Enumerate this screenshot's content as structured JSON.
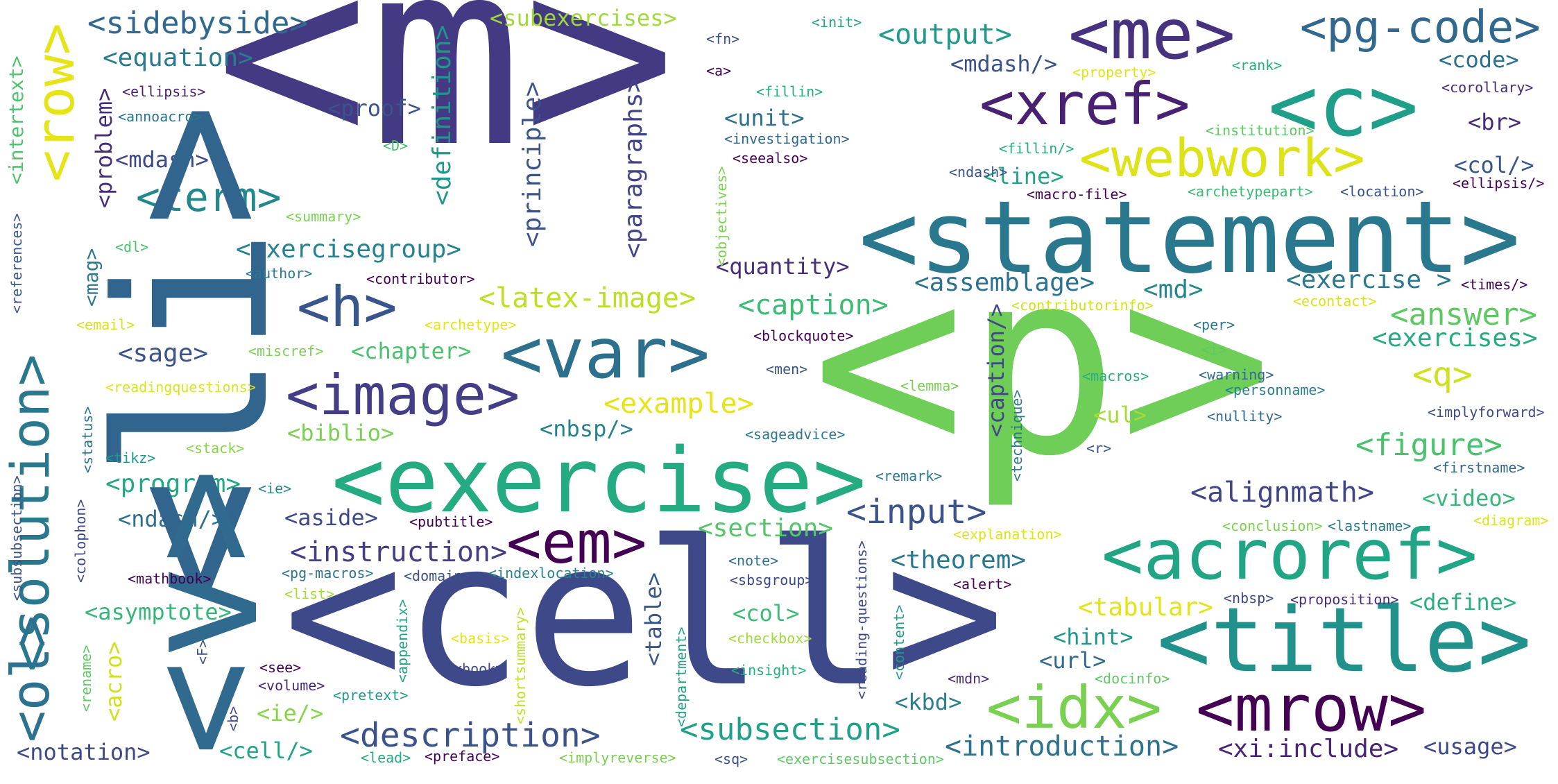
{
  "words": [
    {
      "text": "<m>",
      "color": "#443983"
    },
    {
      "text": "<p>",
      "color": "#6ece58"
    },
    {
      "text": "<cell>",
      "color": "#3e4989"
    },
    {
      "text": "<statement>",
      "color": "#2a788e"
    },
    {
      "text": "<exercise>",
      "color": "#25ab82"
    },
    {
      "text": "<title>",
      "color": "#21918c"
    },
    {
      "text": "<acroref>",
      "color": "#21a585"
    },
    {
      "text": "<me>",
      "color": "#46327e"
    },
    {
      "text": "<c>",
      "color": "#1f9e89"
    },
    {
      "text": "<pg-code>",
      "color": "#31688e"
    },
    {
      "text": "<xref>",
      "color": "#482173"
    },
    {
      "text": "<webwork>",
      "color": "#dde318"
    },
    {
      "text": "<var>",
      "color": "#2d708e"
    },
    {
      "text": "<image>",
      "color": "#433e85"
    },
    {
      "text": "<mrow>",
      "color": "#440154"
    },
    {
      "text": "<idx>",
      "color": "#7ad151"
    },
    {
      "text": "<em>",
      "color": "#440154"
    },
    {
      "text": "<h>",
      "color": "#39568c"
    },
    {
      "text": "<sidebyside>",
      "color": "#31688e"
    },
    {
      "text": "<term>",
      "color": "#23888e"
    },
    {
      "text": "<description>",
      "color": "#3b528b"
    },
    {
      "text": "<subsection>",
      "color": "#1fa187"
    },
    {
      "text": "<introduction>",
      "color": "#2c728e"
    },
    {
      "text": "<alignmath>",
      "color": "#414487"
    },
    {
      "text": "<input>",
      "color": "#3b528b"
    },
    {
      "text": "<instruction>",
      "color": "#433e85"
    },
    {
      "text": "<figure>",
      "color": "#4ac16d"
    },
    {
      "text": "<answer>",
      "color": "#5ec962"
    },
    {
      "text": "<latex-image>",
      "color": "#bddf26"
    },
    {
      "text": "<example>",
      "color": "#e5e419"
    },
    {
      "text": "<caption>",
      "color": "#3bbb75"
    },
    {
      "text": "<exercisegroup>",
      "color": "#26828e"
    },
    {
      "text": "<equation>",
      "color": "#287c8e"
    },
    {
      "text": "<output>",
      "color": "#1f9a8a"
    },
    {
      "text": "<subexercises>",
      "color": "#9fda3a"
    },
    {
      "text": "<program>",
      "color": "#22a884"
    },
    {
      "text": "<xi:include>",
      "color": "#482475"
    },
    {
      "text": "<tabular>",
      "color": "#e2e418"
    },
    {
      "text": "<section>",
      "color": "#54c568"
    },
    {
      "text": "<theorem>",
      "color": "#2a788e"
    },
    {
      "text": "<exercises>",
      "color": "#25ab82"
    },
    {
      "text": "<exercise >",
      "color": "#2a788e"
    },
    {
      "text": "<assemblage>",
      "color": "#2c728e"
    },
    {
      "text": "<md>",
      "color": "#23888e"
    },
    {
      "text": "<sage>",
      "color": "#3b528b"
    },
    {
      "text": "<chapter>",
      "color": "#4ac16d"
    },
    {
      "text": "<biblio>",
      "color": "#7ad151"
    },
    {
      "text": "<nbsp/>",
      "color": "#26828e"
    },
    {
      "text": "<aside>",
      "color": "#3e4989"
    },
    {
      "text": "<ndash/>",
      "color": "#2d708e"
    },
    {
      "text": "<asymptote>",
      "color": "#35b779"
    },
    {
      "text": "<notation>",
      "color": "#3e4989"
    },
    {
      "text": "<cell/>",
      "color": "#20a386"
    },
    {
      "text": "<kbd>",
      "color": "#277f8e"
    },
    {
      "text": "<hint>",
      "color": "#1f988b"
    },
    {
      "text": "<url>",
      "color": "#31688e"
    },
    {
      "text": "<define>",
      "color": "#29af7f"
    },
    {
      "text": "<video>",
      "color": "#35b779"
    },
    {
      "text": "<usage>",
      "color": "#3e4989"
    },
    {
      "text": "<code>",
      "color": "#2d708e"
    },
    {
      "text": "<q>",
      "color": "#cde11d"
    },
    {
      "text": "<ul>",
      "color": "#a5db36"
    },
    {
      "text": "<col>",
      "color": "#3bbb75"
    },
    {
      "text": "<col/>",
      "color": "#39568c"
    },
    {
      "text": "<br>",
      "color": "#482878"
    },
    {
      "text": "<line>",
      "color": "#20a386"
    },
    {
      "text": "<unit>",
      "color": "#2d708e"
    },
    {
      "text": "<proof>",
      "color": "#3b528b"
    },
    {
      "text": "<mdash>",
      "color": "#3e4989"
    },
    {
      "text": "<mdash/>",
      "color": "#3b528b"
    },
    {
      "text": "<quantity>",
      "color": "#472d7b"
    },
    {
      "text": "<ie/>",
      "color": "#86d549"
    },
    {
      "text": "<solution>",
      "color": "#2a788e"
    },
    {
      "text": "<ol>",
      "color": "#2c728e"
    },
    {
      "text": "<row>",
      "color": "#e5e419"
    },
    {
      "text": "<li>",
      "color": "#32658e"
    },
    {
      "text": "<v>",
      "color": "#306a8e"
    },
    {
      "text": "<definition>",
      "color": "#1f988b"
    },
    {
      "text": "<principle>",
      "color": "#3b528b"
    },
    {
      "text": "<paragraphs>",
      "color": "#414487"
    },
    {
      "text": "<problem>",
      "color": "#472c7a"
    },
    {
      "text": "<intertext>",
      "color": "#4ec36b"
    },
    {
      "text": "<mag>",
      "color": "#2a788e"
    },
    {
      "text": "<caption/>",
      "color": "#404688"
    },
    {
      "text": "<table>",
      "color": "#39558c"
    },
    {
      "text": "<acro>",
      "color": "#d0e11c"
    },
    {
      "text": "<ellipsis>",
      "color": "#482173"
    },
    {
      "text": "<annoacro>",
      "color": "#2a788e"
    },
    {
      "text": "<D>",
      "color": "#4ac16d"
    },
    {
      "text": "<summary>",
      "color": "#7ad151"
    },
    {
      "text": "<dl>",
      "color": "#4ac16d"
    },
    {
      "text": "<author>",
      "color": "#2a788e"
    },
    {
      "text": "<contributor>",
      "color": "#440154"
    },
    {
      "text": "<email>",
      "color": "#d8e219"
    },
    {
      "text": "<archetype>",
      "color": "#e5e419"
    },
    {
      "text": "<miscref>",
      "color": "#7ad151"
    },
    {
      "text": "<readingquestions>",
      "color": "#dde318"
    },
    {
      "text": "<stack>",
      "color": "#86d549"
    },
    {
      "text": "<tikz>",
      "color": "#1f988b"
    },
    {
      "text": "<ie>",
      "color": "#23888e"
    },
    {
      "text": "<status>",
      "color": "#2c728e"
    },
    {
      "text": "<colophon>",
      "color": "#3e4989"
    },
    {
      "text": "<subsubsection>",
      "color": "#3b528b"
    },
    {
      "text": "<references>",
      "color": "#39568c"
    },
    {
      "text": "<mathbook>",
      "color": "#440154"
    },
    {
      "text": "<pg-macros>",
      "color": "#2c728e"
    },
    {
      "text": "<list>",
      "color": "#a5db36"
    },
    {
      "text": "<domain>",
      "color": "#3b528b"
    },
    {
      "text": "<indexlocation>",
      "color": "#26828e"
    },
    {
      "text": "<pubtitle>",
      "color": "#440154"
    },
    {
      "text": "<see>",
      "color": "#440154"
    },
    {
      "text": "<volume>",
      "color": "#482878"
    },
    {
      "text": "<pretext>",
      "color": "#1f9a8a"
    },
    {
      "text": "<b>",
      "color": "#3e4989"
    },
    {
      "text": "<rename>",
      "color": "#5ec962"
    },
    {
      "text": "<F>",
      "color": "#3b528b"
    },
    {
      "text": "<appendix>",
      "color": "#20a386"
    },
    {
      "text": "<basis>",
      "color": "#e5e419"
    },
    {
      "text": "<book>",
      "color": "#3e4989"
    },
    {
      "text": "<shortsummary>",
      "color": "#c2df23"
    },
    {
      "text": "<lead>",
      "color": "#25ab82"
    },
    {
      "text": "<preface>",
      "color": "#440154"
    },
    {
      "text": "<implyreverse>",
      "color": "#7ad151"
    },
    {
      "text": "<sq>",
      "color": "#3b528b"
    },
    {
      "text": "<exercisesubsection>",
      "color": "#5ec962"
    },
    {
      "text": "<department>",
      "color": "#20a386"
    },
    {
      "text": "<insight>",
      "color": "#29af7f"
    },
    {
      "text": "<checkbox>",
      "color": "#a0da39"
    },
    {
      "text": "<sbsgroup>",
      "color": "#3e4989"
    },
    {
      "text": "<note>",
      "color": "#2c728e"
    },
    {
      "text": "<reading-questions>",
      "color": "#3e4989"
    },
    {
      "text": "<content>",
      "color": "#1f988b"
    },
    {
      "text": "<mdn>",
      "color": "#482878"
    },
    {
      "text": "<docinfo>",
      "color": "#5ec962"
    },
    {
      "text": "<alert>",
      "color": "#440154"
    },
    {
      "text": "<nbsp>",
      "color": "#3e4989"
    },
    {
      "text": "<proposition>",
      "color": "#472c7a"
    },
    {
      "text": "<explanation>",
      "color": "#dde318"
    },
    {
      "text": "<technique>",
      "color": "#2a788e"
    },
    {
      "text": "<remark>",
      "color": "#2a788e"
    },
    {
      "text": "<conclusion>",
      "color": "#7ad151"
    },
    {
      "text": "<lastname>",
      "color": "#2a788e"
    },
    {
      "text": "<diagram>",
      "color": "#dde318"
    },
    {
      "text": "<firstname>",
      "color": "#31688e"
    },
    {
      "text": "<implyforward>",
      "color": "#3e4989"
    },
    {
      "text": "<nullity>",
      "color": "#31688e"
    },
    {
      "text": "<r>",
      "color": "#3b528b"
    },
    {
      "text": "<personname>",
      "color": "#26828e"
    },
    {
      "text": "<warning>",
      "color": "#31688e"
    },
    {
      "text": "<macros>",
      "color": "#29af7f"
    },
    {
      "text": "<lemma>",
      "color": "#7ad151"
    },
    {
      "text": "<i>",
      "color": "#5ec962"
    },
    {
      "text": "<per>",
      "color": "#2a788e"
    },
    {
      "text": "<men>",
      "color": "#3b528b"
    },
    {
      "text": "<blockquote>",
      "color": "#440154"
    },
    {
      "text": "<sageadvice>",
      "color": "#2a788e"
    },
    {
      "text": "<econtact>",
      "color": "#d8e219"
    },
    {
      "text": "<times/>",
      "color": "#440154"
    },
    {
      "text": "<contributorinfo>",
      "color": "#d0e11c"
    },
    {
      "text": "<macro-file>",
      "color": "#440154"
    },
    {
      "text": "<archetypepart>",
      "color": "#3bbb75"
    },
    {
      "text": "<location>",
      "color": "#3b528b"
    },
    {
      "text": "<ellipsis/>",
      "color": "#440154"
    },
    {
      "text": "<ndash>",
      "color": "#3b528b"
    },
    {
      "text": "<fillin/>",
      "color": "#29af7f"
    },
    {
      "text": "<institution>",
      "color": "#5ec962"
    },
    {
      "text": "<corollary>",
      "color": "#482878"
    },
    {
      "text": "<rank>",
      "color": "#29af7f"
    },
    {
      "text": "<property>",
      "color": "#e2e418"
    },
    {
      "text": "<init>",
      "color": "#20a386"
    },
    {
      "text": "<fn>",
      "color": "#3b528b"
    },
    {
      "text": "<a>",
      "color": "#440154"
    },
    {
      "text": "<fillin>",
      "color": "#29af7f"
    },
    {
      "text": "<investigation>",
      "color": "#31688e"
    },
    {
      "text": "<seealso>",
      "color": "#440154"
    },
    {
      "text": "<objectives>",
      "color": "#7ad151"
    }
  ]
}
